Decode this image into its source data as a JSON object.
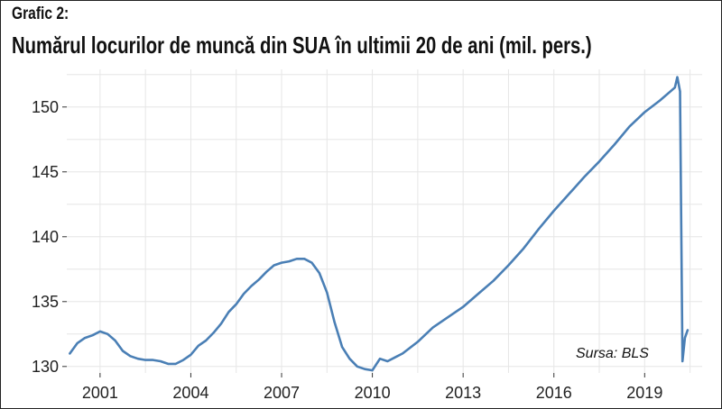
{
  "header": {
    "label": "Grafic 2:",
    "title": "Numărul locurilor de muncă din SUA în ultimii 20 de ani (mil. pers.)"
  },
  "source": "Sursa: BLS",
  "colors": {
    "line": "#4a7fb5",
    "grid": "#e6e6e6",
    "border": "#222222"
  },
  "chart_data": {
    "type": "line",
    "title": "Numărul locurilor de muncă din SUA în ultimii 20 de ani (mil. pers.)",
    "xlabel": "",
    "ylabel": "",
    "x_ticks": [
      "2001",
      "2004",
      "2007",
      "2010",
      "2013",
      "2016",
      "2019"
    ],
    "y_ticks": [
      130,
      135,
      140,
      145,
      150
    ],
    "xlim": [
      1999.9,
      2020.9
    ],
    "ylim": [
      129.5,
      152.9
    ],
    "grid": true,
    "legend": "none",
    "series": [
      {
        "x": [
          2000.0,
          2000.25,
          2000.5,
          2000.75,
          2001.0,
          2001.25,
          2001.5,
          2001.75,
          2002.0,
          2002.25,
          2002.5,
          2002.75,
          2003.0,
          2003.25,
          2003.5,
          2003.75,
          2004.0,
          2004.25,
          2004.5,
          2004.75,
          2005.0,
          2005.25,
          2005.5,
          2005.75,
          2006.0,
          2006.25,
          2006.5,
          2006.75,
          2007.0,
          2007.25,
          2007.5,
          2007.75,
          2008.0,
          2008.25,
          2008.5,
          2008.75,
          2009.0,
          2009.25,
          2009.5,
          2009.75,
          2010.0,
          2010.25,
          2010.5,
          2010.75,
          2011.0,
          2011.5,
          2012.0,
          2012.5,
          2013.0,
          2013.5,
          2014.0,
          2014.5,
          2015.0,
          2015.5,
          2016.0,
          2016.5,
          2017.0,
          2017.5,
          2018.0,
          2018.5,
          2019.0,
          2019.5,
          2020.0,
          2020.08,
          2020.17,
          2020.25,
          2020.33,
          2020.42
        ],
        "values": [
          131.0,
          131.8,
          132.2,
          132.4,
          132.7,
          132.5,
          132.0,
          131.2,
          130.8,
          130.6,
          130.5,
          130.5,
          130.4,
          130.2,
          130.2,
          130.5,
          130.9,
          131.6,
          132.0,
          132.6,
          133.3,
          134.2,
          134.8,
          135.6,
          136.2,
          136.7,
          137.3,
          137.8,
          138.0,
          138.1,
          138.3,
          138.3,
          138.0,
          137.2,
          135.7,
          133.4,
          131.5,
          130.6,
          130.0,
          129.8,
          129.7,
          130.6,
          130.4,
          130.7,
          131.0,
          131.9,
          133.0,
          133.8,
          134.6,
          135.6,
          136.6,
          137.8,
          139.1,
          140.6,
          142.0,
          143.3,
          144.6,
          145.8,
          147.1,
          148.5,
          149.6,
          150.5,
          151.5,
          152.3,
          151.2,
          130.4,
          132.2,
          132.8
        ]
      }
    ]
  }
}
